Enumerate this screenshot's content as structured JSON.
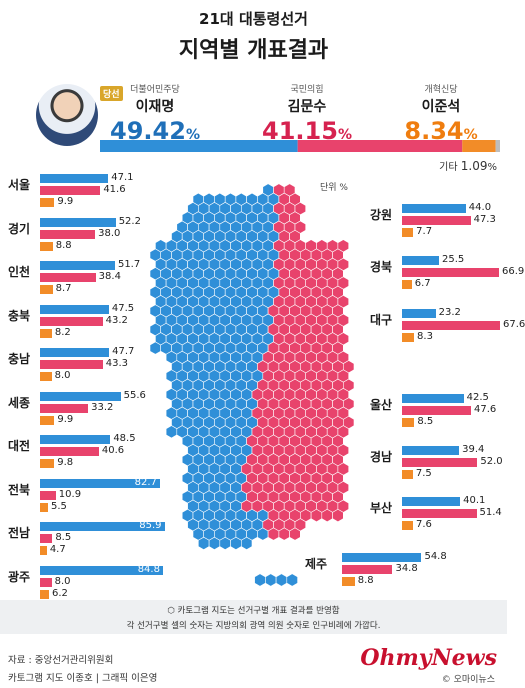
{
  "header": {
    "title1": "21대 대통령선거",
    "title2": "지역별 개표결과"
  },
  "winner_badge": "당선",
  "national": {
    "candidates": [
      {
        "party": "더불어민주당",
        "name": "이재명",
        "pct_num": "49.42",
        "pct_unit": "%",
        "value": 49.42,
        "color": "#2f8fd8",
        "text_color": "#1f6fb8"
      },
      {
        "party": "국민의힘",
        "name": "김문수",
        "pct_num": "41.15",
        "pct_unit": "%",
        "value": 41.15,
        "color": "#e8436c",
        "text_color": "#d6224f"
      },
      {
        "party": "개혁신당",
        "name": "이준석",
        "pct_num": "8.34",
        "pct_unit": "%",
        "value": 8.34,
        "color": "#f28c28",
        "text_color": "#ef7d0f"
      }
    ],
    "other_label": "기타",
    "other_value": "1.09",
    "other_unit": "%",
    "other_color": "#bdbdbd"
  },
  "unit_label": "단위 %",
  "chart_data": {
    "type": "bar",
    "series": [
      {
        "name": "이재명",
        "color": "#2f8fd8"
      },
      {
        "name": "김문수",
        "color": "#e8436c"
      },
      {
        "name": "이준석",
        "color": "#f28c28"
      }
    ],
    "regions": [
      {
        "name": "서울",
        "values": [
          47.1,
          41.6,
          9.9
        ],
        "labels": [
          "47.1",
          "41.6",
          "9.9"
        ]
      },
      {
        "name": "경기",
        "values": [
          52.2,
          38.0,
          8.8
        ],
        "labels": [
          "52.2",
          "38.0",
          "8.8"
        ]
      },
      {
        "name": "인천",
        "values": [
          51.7,
          38.4,
          8.7
        ],
        "labels": [
          "51.7",
          "38.4",
          "8.7"
        ]
      },
      {
        "name": "충북",
        "values": [
          47.5,
          43.2,
          8.2
        ],
        "labels": [
          "47.5",
          "43.2",
          "8.2"
        ]
      },
      {
        "name": "충남",
        "values": [
          47.7,
          43.3,
          8.0
        ],
        "labels": [
          "47.7",
          "43.3",
          "8.0"
        ]
      },
      {
        "name": "세종",
        "values": [
          55.6,
          33.2,
          9.9
        ],
        "labels": [
          "55.6",
          "33.2",
          "9.9"
        ]
      },
      {
        "name": "대전",
        "values": [
          48.5,
          40.6,
          9.8
        ],
        "labels": [
          "48.5",
          "40.6",
          "9.8"
        ]
      },
      {
        "name": "전북",
        "values": [
          82.7,
          10.9,
          5.5
        ],
        "labels": [
          "82.7",
          "10.9",
          "5.5"
        ]
      },
      {
        "name": "전남",
        "values": [
          85.9,
          8.5,
          4.7
        ],
        "labels": [
          "85.9",
          "8.5",
          "4.7"
        ]
      },
      {
        "name": "광주",
        "values": [
          84.8,
          8.0,
          6.2
        ],
        "labels": [
          "84.8",
          "8.0",
          "6.2"
        ]
      },
      {
        "name": "강원",
        "values": [
          44.0,
          47.3,
          7.7
        ],
        "labels": [
          "44.0",
          "47.3",
          "7.7"
        ]
      },
      {
        "name": "경북",
        "values": [
          25.5,
          66.9,
          6.7
        ],
        "labels": [
          "25.5",
          "66.9",
          "6.7"
        ]
      },
      {
        "name": "대구",
        "values": [
          23.2,
          67.6,
          8.3
        ],
        "labels": [
          "23.2",
          "67.6",
          "8.3"
        ]
      },
      {
        "name": "울산",
        "values": [
          42.5,
          47.6,
          8.5
        ],
        "labels": [
          "42.5",
          "47.6",
          "8.5"
        ]
      },
      {
        "name": "경남",
        "values": [
          39.4,
          52.0,
          7.5
        ],
        "labels": [
          "39.4",
          "52.0",
          "7.5"
        ]
      },
      {
        "name": "부산",
        "values": [
          40.1,
          51.4,
          7.6
        ],
        "labels": [
          "40.1",
          "51.4",
          "7.6"
        ]
      },
      {
        "name": "제주",
        "values": [
          54.8,
          34.8,
          8.8
        ],
        "labels": [
          "54.8",
          "34.8",
          "8.8"
        ]
      }
    ]
  },
  "notes": {
    "line1": "카토그램 지도는 선거구별 개표 결과를 반영함",
    "line2": "각 선거구별 셀의 숫자는 지방의회 광역 의원 숫자로 인구비례에 가깝다."
  },
  "footer": {
    "source": "자료 : 중앙선거관리위원회",
    "credits": "카토그램 지도 이종호 | 그래픽 이은영",
    "logo": "OhmyNews",
    "copyright": "© 오마이뉴스"
  }
}
